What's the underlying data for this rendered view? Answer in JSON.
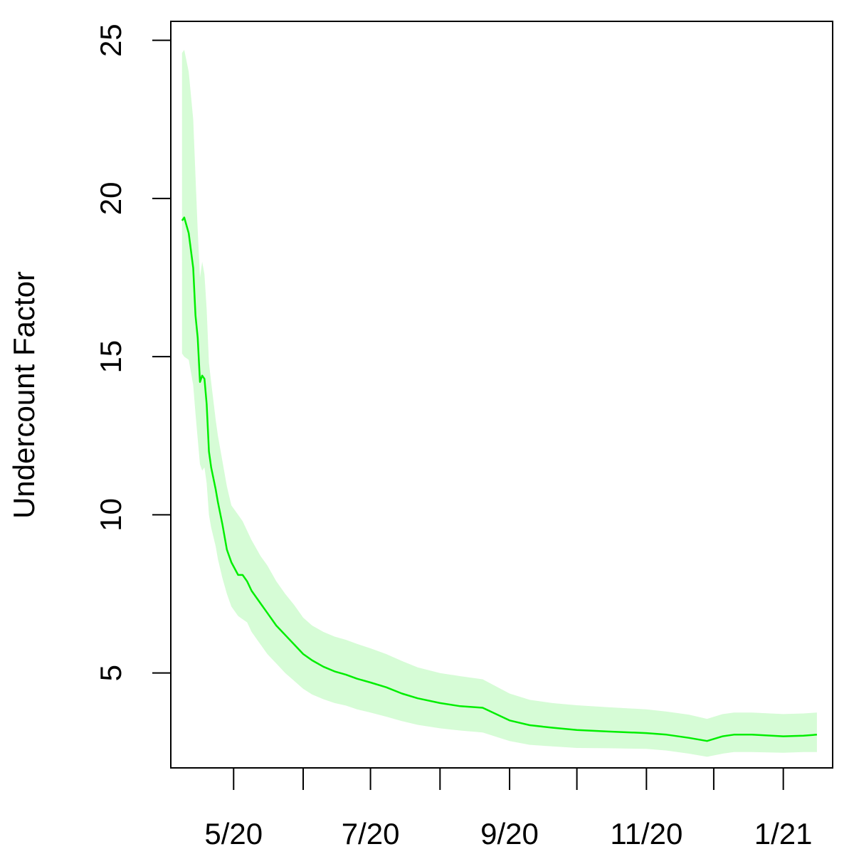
{
  "chart_data": {
    "type": "line",
    "title": "",
    "xlabel": "",
    "ylabel": "Undercount Factor",
    "x_ticks": [
      {
        "date": "2020-05-01",
        "label": "5/20"
      },
      {
        "date": "2020-06-01",
        "label": ""
      },
      {
        "date": "2020-07-01",
        "label": "7/20"
      },
      {
        "date": "2020-08-01",
        "label": ""
      },
      {
        "date": "2020-09-01",
        "label": "9/20"
      },
      {
        "date": "2020-10-01",
        "label": ""
      },
      {
        "date": "2020-11-01",
        "label": "11/20"
      },
      {
        "date": "2020-12-01",
        "label": ""
      },
      {
        "date": "2021-01-01",
        "label": "1/21"
      }
    ],
    "y_ticks": [
      5,
      10,
      15,
      20,
      25
    ],
    "xlim": [
      "2020-04-03",
      "2021-01-23"
    ],
    "ylim": [
      2.0,
      25.6
    ],
    "grid": false,
    "legend": "none",
    "colors": {
      "line": "#00ee00",
      "band": "#d6fcd6",
      "axis": "#000000"
    },
    "series": [
      {
        "x": [
          "2020-04-08",
          "2020-04-09",
          "2020-04-11",
          "2020-04-13",
          "2020-04-14",
          "2020-04-15",
          "2020-04-16",
          "2020-04-17",
          "2020-04-18",
          "2020-04-19",
          "2020-04-20",
          "2020-04-21",
          "2020-04-23",
          "2020-04-24",
          "2020-04-26",
          "2020-04-28",
          "2020-04-30",
          "2020-05-03",
          "2020-05-05",
          "2020-05-07",
          "2020-05-09",
          "2020-05-11",
          "2020-05-13",
          "2020-05-16",
          "2020-05-20",
          "2020-05-24",
          "2020-05-28",
          "2020-06-01",
          "2020-06-05",
          "2020-06-10",
          "2020-06-15",
          "2020-06-20",
          "2020-06-25",
          "2020-07-01",
          "2020-07-08",
          "2020-07-15",
          "2020-07-22",
          "2020-08-01",
          "2020-08-10",
          "2020-08-20",
          "2020-09-01",
          "2020-09-10",
          "2020-09-20",
          "2020-10-01",
          "2020-10-15",
          "2020-11-01",
          "2020-11-10",
          "2020-11-20",
          "2020-11-28",
          "2020-12-05",
          "2020-12-10",
          "2020-12-18",
          "2021-01-01",
          "2021-01-10",
          "2021-01-16"
        ],
        "y": [
          19.3,
          19.4,
          18.9,
          17.8,
          16.3,
          15.6,
          14.2,
          14.4,
          14.3,
          13.5,
          12.0,
          11.5,
          10.8,
          10.4,
          9.7,
          8.9,
          8.5,
          8.1,
          8.1,
          7.9,
          7.6,
          7.4,
          7.2,
          6.9,
          6.5,
          6.2,
          5.9,
          5.6,
          5.4,
          5.2,
          5.05,
          4.95,
          4.82,
          4.7,
          4.55,
          4.35,
          4.2,
          4.05,
          3.95,
          3.9,
          3.5,
          3.35,
          3.27,
          3.2,
          3.15,
          3.1,
          3.05,
          2.95,
          2.85,
          3.0,
          3.05,
          3.05,
          3.0,
          3.02,
          3.05
        ],
        "lower": [
          15.1,
          15.0,
          14.9,
          14.1,
          13.2,
          12.4,
          11.6,
          11.4,
          11.5,
          11.0,
          10.0,
          9.6,
          9.0,
          8.6,
          8.0,
          7.5,
          7.1,
          6.8,
          6.7,
          6.6,
          6.3,
          6.1,
          5.9,
          5.6,
          5.3,
          5.0,
          4.75,
          4.5,
          4.32,
          4.17,
          4.05,
          3.97,
          3.85,
          3.75,
          3.62,
          3.48,
          3.36,
          3.25,
          3.18,
          3.12,
          2.85,
          2.73,
          2.68,
          2.63,
          2.62,
          2.6,
          2.55,
          2.45,
          2.35,
          2.45,
          2.5,
          2.5,
          2.48,
          2.5,
          2.5
        ],
        "upper": [
          24.6,
          24.7,
          24.0,
          22.5,
          20.7,
          19.0,
          17.5,
          18.0,
          17.6,
          16.5,
          14.8,
          14.2,
          13.0,
          12.5,
          11.7,
          10.9,
          10.3,
          10.0,
          9.8,
          9.5,
          9.2,
          8.95,
          8.7,
          8.4,
          7.9,
          7.5,
          7.15,
          6.75,
          6.5,
          6.3,
          6.15,
          6.05,
          5.92,
          5.78,
          5.6,
          5.38,
          5.18,
          5.0,
          4.9,
          4.8,
          4.35,
          4.15,
          4.05,
          3.98,
          3.92,
          3.85,
          3.78,
          3.68,
          3.55,
          3.7,
          3.75,
          3.75,
          3.7,
          3.72,
          3.75
        ]
      }
    ]
  }
}
